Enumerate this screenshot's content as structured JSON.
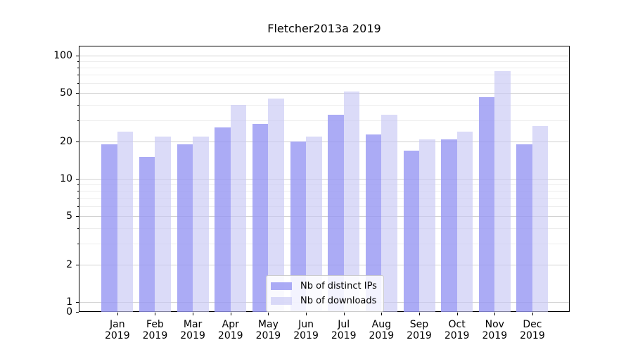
{
  "title": "Fletcher2013a 2019",
  "colors": {
    "ips": "rgba(150,150,242,0.8)",
    "downloads": "rgba(200,200,245,0.65)",
    "grid_major": "#d2d2d2",
    "grid_minor": "#ededed",
    "axis": "#000000",
    "legend_border": "#cccccc"
  },
  "chart_data": {
    "type": "bar",
    "title": "Fletcher2013a 2019",
    "categories": [
      "Jan 2019",
      "Feb 2019",
      "Mar 2019",
      "Apr 2019",
      "May 2019",
      "Jun 2019",
      "Jul 2019",
      "Aug 2019",
      "Sep 2019",
      "Oct 2019",
      "Nov 2019",
      "Dec 2019"
    ],
    "series": [
      {
        "name": "Nb of distinct IPs",
        "values": [
          19,
          15,
          19,
          26,
          28,
          20,
          33,
          23,
          17,
          21,
          46,
          19
        ]
      },
      {
        "name": "Nb of downloads",
        "values": [
          24,
          22,
          22,
          40,
          45,
          22,
          51,
          33,
          21,
          24,
          75,
          27
        ]
      }
    ],
    "yscale": "symlog",
    "ylim": [
      0,
      120
    ],
    "ytick_values": [
      100,
      50,
      20,
      10,
      5,
      2,
      1,
      0
    ],
    "ytick_labels": [
      "100",
      "50",
      "20",
      "10",
      "5",
      "2",
      "1",
      "0"
    ],
    "yminor_values": [
      3,
      4,
      6,
      7,
      8,
      9,
      30,
      40,
      60,
      70,
      80,
      90
    ],
    "xlabel": "",
    "ylabel": "",
    "grid": true,
    "legend_position": "lower center"
  }
}
